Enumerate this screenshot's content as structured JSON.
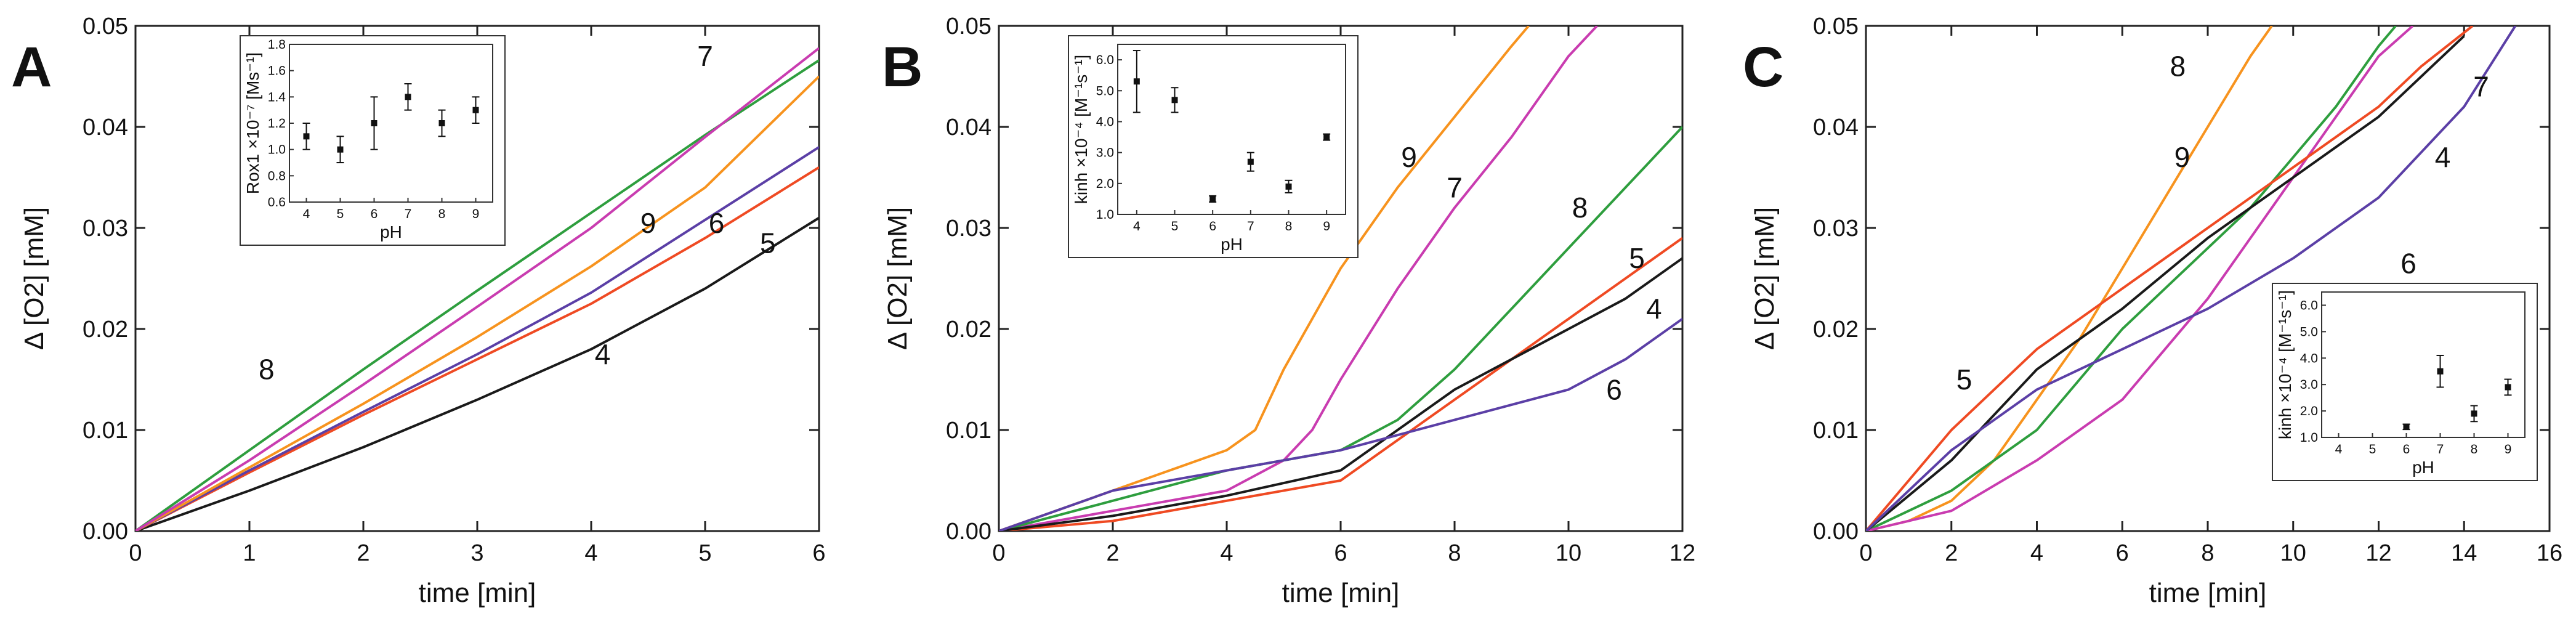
{
  "chart_data": [
    {
      "type": "line",
      "panel": "A",
      "xlabel": "time [min]",
      "ylabel": "Δ [O2] [mM]",
      "xlim": [
        0,
        6
      ],
      "ylim": [
        0,
        0.05
      ],
      "xticks": [
        "0",
        "1",
        "2",
        "3",
        "4",
        "5",
        "6"
      ],
      "yticks": [
        "0.00",
        "0.01",
        "0.02",
        "0.03",
        "0.04",
        "0.05"
      ],
      "series": [
        {
          "name": "4",
          "color": "#1a1a1a",
          "x": [
            0,
            1,
            2,
            3,
            4,
            5,
            6
          ],
          "y": [
            0,
            0.004,
            0.0083,
            0.013,
            0.018,
            0.024,
            0.031
          ]
        },
        {
          "name": "5",
          "color": "#ef4a23",
          "x": [
            0,
            1,
            2,
            3,
            4,
            5,
            6
          ],
          "y": [
            0,
            0.0058,
            0.0115,
            0.017,
            0.0225,
            0.029,
            0.036
          ]
        },
        {
          "name": "6",
          "color": "#5b3fa6",
          "x": [
            0,
            1,
            2,
            3,
            4,
            5,
            6
          ],
          "y": [
            0,
            0.006,
            0.0118,
            0.0175,
            0.0236,
            0.0308,
            0.038
          ]
        },
        {
          "name": "9",
          "color": "#f7931e",
          "x": [
            0,
            1,
            2,
            3,
            4,
            5,
            6
          ],
          "y": [
            0,
            0.0063,
            0.0126,
            0.0192,
            0.0262,
            0.034,
            0.045
          ]
        },
        {
          "name": "8",
          "color": "#2e9e3e",
          "x": [
            0,
            1,
            2,
            3,
            4,
            5,
            6
          ],
          "y": [
            0,
            0.008,
            0.016,
            0.0238,
            0.0315,
            0.0392,
            0.0466
          ]
        },
        {
          "name": "7",
          "color": "#c93cb0",
          "x": [
            0,
            1,
            2,
            3,
            4,
            5,
            6
          ],
          "y": [
            0,
            0.007,
            0.0145,
            0.0222,
            0.03,
            0.039,
            0.0478
          ]
        }
      ],
      "labels": [
        {
          "text": "7",
          "x": 5.0,
          "y": 0.047
        },
        {
          "text": "9",
          "x": 4.5,
          "y": 0.0305
        },
        {
          "text": "6",
          "x": 5.1,
          "y": 0.0305
        },
        {
          "text": "5",
          "x": 5.55,
          "y": 0.0285
        },
        {
          "text": "8",
          "x": 1.15,
          "y": 0.016
        },
        {
          "text": "4",
          "x": 4.1,
          "y": 0.0175
        }
      ],
      "inset": {
        "xlabel": "pH",
        "ylabel": "Rox1 ×10⁻⁷ [Ms⁻¹]",
        "xlim": [
          3.5,
          9.5
        ],
        "ylim": [
          0.6,
          1.8
        ],
        "xticks": [
          "4",
          "5",
          "6",
          "7",
          "8",
          "9"
        ],
        "yticks": [
          "0.6",
          "0.8",
          "1.0",
          "1.2",
          "1.4",
          "1.6",
          "1.8"
        ],
        "points": [
          {
            "x": 4,
            "y": 1.1,
            "err": 0.1
          },
          {
            "x": 5,
            "y": 1.0,
            "err": 0.1
          },
          {
            "x": 6,
            "y": 1.2,
            "err": 0.2
          },
          {
            "x": 7,
            "y": 1.4,
            "err": 0.1
          },
          {
            "x": 8,
            "y": 1.2,
            "err": 0.1
          },
          {
            "x": 9,
            "y": 1.3,
            "err": 0.1
          }
        ]
      }
    },
    {
      "type": "line",
      "panel": "B",
      "xlabel": "time [min]",
      "ylabel": "Δ [O2] [mM]",
      "xlim": [
        0,
        12
      ],
      "ylim": [
        0,
        0.05
      ],
      "xticks": [
        "0",
        "2",
        "4",
        "6",
        "8",
        "10",
        "12"
      ],
      "yticks": [
        "0.00",
        "0.01",
        "0.02",
        "0.03",
        "0.04",
        "0.05"
      ],
      "series": [
        {
          "name": "9",
          "color": "#f7931e",
          "x": [
            0,
            2,
            4,
            4.5,
            5,
            6,
            7,
            8,
            9,
            9.3
          ],
          "y": [
            0,
            0.004,
            0.008,
            0.01,
            0.016,
            0.026,
            0.034,
            0.041,
            0.048,
            0.05
          ]
        },
        {
          "name": "7",
          "color": "#c93cb0",
          "x": [
            0,
            2,
            4,
            5,
            5.5,
            6,
            7,
            8,
            9,
            10,
            10.5
          ],
          "y": [
            0,
            0.002,
            0.004,
            0.007,
            0.01,
            0.015,
            0.024,
            0.032,
            0.039,
            0.047,
            0.05
          ]
        },
        {
          "name": "8",
          "color": "#2e9e3e",
          "x": [
            0,
            2,
            4,
            6,
            7,
            8,
            9,
            10,
            11,
            12
          ],
          "y": [
            0,
            0.003,
            0.006,
            0.008,
            0.011,
            0.016,
            0.022,
            0.028,
            0.034,
            0.04
          ]
        },
        {
          "name": "5",
          "color": "#ef4a23",
          "x": [
            0,
            2,
            4,
            6,
            7,
            8,
            9,
            10,
            11,
            12
          ],
          "y": [
            0,
            0.001,
            0.003,
            0.005,
            0.009,
            0.013,
            0.017,
            0.021,
            0.025,
            0.029
          ]
        },
        {
          "name": "4",
          "color": "#1a1a1a",
          "x": [
            0,
            2,
            4,
            6,
            7,
            8,
            9,
            10,
            11,
            12
          ],
          "y": [
            0,
            0.0015,
            0.0035,
            0.006,
            0.01,
            0.014,
            0.017,
            0.02,
            0.023,
            0.027
          ]
        },
        {
          "name": "6",
          "color": "#5b3fa6",
          "x": [
            0,
            2,
            4,
            6,
            8,
            10,
            11,
            12
          ],
          "y": [
            0,
            0.004,
            0.006,
            0.008,
            0.011,
            0.014,
            0.017,
            0.021
          ]
        }
      ],
      "labels": [
        {
          "text": "9",
          "x": 7.2,
          "y": 0.037
        },
        {
          "text": "7",
          "x": 8.0,
          "y": 0.034
        },
        {
          "text": "8",
          "x": 10.2,
          "y": 0.032
        },
        {
          "text": "5",
          "x": 11.2,
          "y": 0.027
        },
        {
          "text": "4",
          "x": 11.5,
          "y": 0.022
        },
        {
          "text": "6",
          "x": 10.8,
          "y": 0.014
        }
      ],
      "inset": {
        "xlabel": "pH",
        "ylabel": "kinh ×10⁻⁴ [M⁻¹s⁻¹]",
        "xlim": [
          3.5,
          9.5
        ],
        "ylim": [
          1.0,
          6.5
        ],
        "xticks": [
          "4",
          "5",
          "6",
          "7",
          "8",
          "9"
        ],
        "yticks": [
          "1.0",
          "2.0",
          "3.0",
          "4.0",
          "5.0",
          "6.0"
        ],
        "points": [
          {
            "x": 4,
            "y": 5.3,
            "err": 1.0
          },
          {
            "x": 5,
            "y": 4.7,
            "err": 0.4
          },
          {
            "x": 6,
            "y": 1.5,
            "err": 0.1
          },
          {
            "x": 7,
            "y": 2.7,
            "err": 0.3
          },
          {
            "x": 8,
            "y": 1.9,
            "err": 0.2
          },
          {
            "x": 9,
            "y": 3.5,
            "err": 0.1
          }
        ]
      }
    },
    {
      "type": "line",
      "panel": "C",
      "xlabel": "time [min]",
      "ylabel": "Δ [O2] [mM]",
      "xlim": [
        0,
        16
      ],
      "ylim": [
        0,
        0.05
      ],
      "xticks": [
        "0",
        "2",
        "4",
        "6",
        "8",
        "10",
        "12",
        "14",
        "16"
      ],
      "yticks": [
        "0.00",
        "0.01",
        "0.02",
        "0.03",
        "0.04",
        "0.05"
      ],
      "series": [
        {
          "name": "9",
          "color": "#f7931e",
          "x": [
            0,
            1,
            2,
            3,
            4,
            5,
            6,
            7,
            8,
            9,
            9.5
          ],
          "y": [
            0,
            0.001,
            0.003,
            0.007,
            0.013,
            0.019,
            0.026,
            0.033,
            0.04,
            0.047,
            0.05
          ]
        },
        {
          "name": "8",
          "color": "#2e9e3e",
          "x": [
            0,
            2,
            4,
            5,
            6,
            7,
            8,
            9,
            10,
            11,
            12,
            12.4
          ],
          "y": [
            0,
            0.004,
            0.01,
            0.015,
            0.02,
            0.024,
            0.028,
            0.032,
            0.037,
            0.042,
            0.048,
            0.05
          ]
        },
        {
          "name": "7",
          "color": "#c93cb0",
          "x": [
            0,
            2,
            4,
            6,
            7,
            8,
            9,
            10,
            11,
            12,
            12.8
          ],
          "y": [
            0,
            0.002,
            0.007,
            0.013,
            0.018,
            0.023,
            0.029,
            0.035,
            0.041,
            0.047,
            0.05
          ]
        },
        {
          "name": "5",
          "color": "#ef4a23",
          "x": [
            0,
            2,
            4,
            6,
            8,
            10,
            12,
            13,
            14.2
          ],
          "y": [
            0,
            0.01,
            0.018,
            0.024,
            0.03,
            0.036,
            0.042,
            0.046,
            0.05
          ]
        },
        {
          "name": "4",
          "color": "#1a1a1a",
          "x": [
            0,
            2,
            4,
            6,
            8,
            10,
            12,
            13,
            14
          ],
          "y": [
            0,
            0.007,
            0.016,
            0.022,
            0.029,
            0.035,
            0.041,
            0.045,
            0.049
          ]
        },
        {
          "name": "6",
          "color": "#5b3fa6",
          "x": [
            0,
            2,
            4,
            6,
            8,
            10,
            12,
            14,
            15.2
          ],
          "y": [
            0,
            0.008,
            0.014,
            0.018,
            0.022,
            0.027,
            0.033,
            0.042,
            0.05
          ]
        }
      ],
      "labels": [
        {
          "text": "8",
          "x": 7.3,
          "y": 0.046
        },
        {
          "text": "7",
          "x": 14.4,
          "y": 0.044
        },
        {
          "text": "9",
          "x": 7.4,
          "y": 0.037
        },
        {
          "text": "4",
          "x": 13.5,
          "y": 0.037
        },
        {
          "text": "6",
          "x": 12.7,
          "y": 0.0265
        },
        {
          "text": "5",
          "x": 2.3,
          "y": 0.015
        }
      ],
      "inset": {
        "xlabel": "pH",
        "ylabel": "kinh ×10⁻⁴ [M⁻¹s⁻¹]",
        "xlim": [
          3.5,
          9.5
        ],
        "ylim": [
          1.0,
          6.5
        ],
        "xticks": [
          "4",
          "5",
          "6",
          "7",
          "8",
          "9"
        ],
        "yticks": [
          "1.0",
          "2.0",
          "3.0",
          "4.0",
          "5.0",
          "6.0"
        ],
        "points": [
          {
            "x": 6,
            "y": 1.4,
            "err": 0.1
          },
          {
            "x": 7,
            "y": 3.5,
            "err": 0.6
          },
          {
            "x": 8,
            "y": 1.9,
            "err": 0.3
          },
          {
            "x": 9,
            "y": 2.9,
            "err": 0.3
          }
        ]
      }
    }
  ]
}
